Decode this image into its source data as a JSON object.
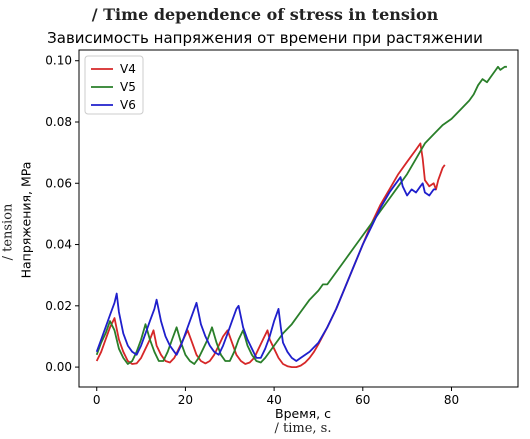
{
  "chart_data": {
    "type": "line",
    "caption": "/ Time dependence of stress in tension",
    "title": "Зависимость напряжения от времени при растяжении",
    "xlabel": "Время, с",
    "xlabel_en": "/ time, s.",
    "ylabel": "Напряжения, MPa",
    "ylabel_en": "/ tension",
    "xlim": [
      -4,
      95
    ],
    "ylim": [
      -0.0065,
      0.1035
    ],
    "xticks": [
      0,
      20,
      40,
      60,
      80
    ],
    "yticks": [
      0.0,
      0.02,
      0.04,
      0.06,
      0.08,
      0.1
    ],
    "xtick_labels": [
      "0",
      "20",
      "40",
      "60",
      "80"
    ],
    "ytick_labels": [
      "0.00",
      "0.02",
      "0.04",
      "0.06",
      "0.08",
      "0.10"
    ],
    "grid": false,
    "legend_position": "top-left",
    "series": [
      {
        "name": "V4",
        "color": "#d62728",
        "points": [
          [
            0,
            0.002
          ],
          [
            1,
            0.005
          ],
          [
            2,
            0.009
          ],
          [
            3,
            0.013
          ],
          [
            4,
            0.016
          ],
          [
            5,
            0.009
          ],
          [
            6,
            0.005
          ],
          [
            7,
            0.002
          ],
          [
            8,
            0.001
          ],
          [
            9,
            0.0012
          ],
          [
            10,
            0.003
          ],
          [
            11,
            0.006
          ],
          [
            12,
            0.009
          ],
          [
            12.8,
            0.012
          ],
          [
            13.5,
            0.007
          ],
          [
            14.5,
            0.004
          ],
          [
            15.5,
            0.002
          ],
          [
            16.5,
            0.0015
          ],
          [
            17.5,
            0.003
          ],
          [
            18.5,
            0.006
          ],
          [
            19.5,
            0.009
          ],
          [
            20.5,
            0.012
          ],
          [
            21.5,
            0.008
          ],
          [
            22.5,
            0.004
          ],
          [
            23.5,
            0.002
          ],
          [
            24.5,
            0.0012
          ],
          [
            25.5,
            0.002
          ],
          [
            26.5,
            0.004
          ],
          [
            27.5,
            0.007
          ],
          [
            28.5,
            0.01
          ],
          [
            29.5,
            0.012
          ],
          [
            30.5,
            0.008
          ],
          [
            31.5,
            0.004
          ],
          [
            32.5,
            0.002
          ],
          [
            33.5,
            0.001
          ],
          [
            34.5,
            0.0015
          ],
          [
            35.5,
            0.003
          ],
          [
            36.5,
            0.006
          ],
          [
            37.5,
            0.009
          ],
          [
            38.5,
            0.012
          ],
          [
            39,
            0.009
          ],
          [
            40,
            0.006
          ],
          [
            41,
            0.003
          ],
          [
            42,
            0.001
          ],
          [
            43,
            0.0003
          ],
          [
            44,
            0.0
          ],
          [
            45,
            0.0
          ],
          [
            46,
            0.0005
          ],
          [
            47,
            0.0015
          ],
          [
            48,
            0.003
          ],
          [
            49,
            0.005
          ],
          [
            50,
            0.0075
          ],
          [
            52,
            0.013
          ],
          [
            54,
            0.019
          ],
          [
            56,
            0.026
          ],
          [
            58,
            0.033
          ],
          [
            60,
            0.04
          ],
          [
            62,
            0.047
          ],
          [
            64,
            0.053
          ],
          [
            66,
            0.058
          ],
          [
            68,
            0.063
          ],
          [
            70,
            0.067
          ],
          [
            72,
            0.071
          ],
          [
            73,
            0.073
          ],
          [
            73.5,
            0.068
          ],
          [
            74,
            0.061
          ],
          [
            75,
            0.059
          ],
          [
            76,
            0.06
          ],
          [
            76.5,
            0.058
          ],
          [
            77,
            0.061
          ],
          [
            78,
            0.065
          ],
          [
            78.5,
            0.066
          ]
        ]
      },
      {
        "name": "V5",
        "color": "#2a7f2a",
        "points": [
          [
            0,
            0.004
          ],
          [
            1,
            0.008
          ],
          [
            2,
            0.011
          ],
          [
            3,
            0.015
          ],
          [
            4,
            0.012
          ],
          [
            5,
            0.006
          ],
          [
            6,
            0.003
          ],
          [
            7,
            0.001
          ],
          [
            8,
            0.002
          ],
          [
            9,
            0.005
          ],
          [
            10,
            0.009
          ],
          [
            11,
            0.014
          ],
          [
            12,
            0.009
          ],
          [
            13,
            0.005
          ],
          [
            14,
            0.002
          ],
          [
            15,
            0.002
          ],
          [
            16,
            0.005
          ],
          [
            17,
            0.009
          ],
          [
            18,
            0.013
          ],
          [
            19,
            0.008
          ],
          [
            20,
            0.004
          ],
          [
            21,
            0.002
          ],
          [
            22,
            0.001
          ],
          [
            23,
            0.003
          ],
          [
            24,
            0.006
          ],
          [
            25,
            0.009
          ],
          [
            26,
            0.013
          ],
          [
            27,
            0.008
          ],
          [
            28,
            0.004
          ],
          [
            29,
            0.002
          ],
          [
            30,
            0.002
          ],
          [
            31,
            0.005
          ],
          [
            32,
            0.009
          ],
          [
            33,
            0.012
          ],
          [
            34,
            0.007
          ],
          [
            35,
            0.004
          ],
          [
            36,
            0.002
          ],
          [
            37,
            0.0015
          ],
          [
            38,
            0.003
          ],
          [
            40,
            0.007
          ],
          [
            42,
            0.011
          ],
          [
            44,
            0.014
          ],
          [
            46,
            0.018
          ],
          [
            48,
            0.022
          ],
          [
            50,
            0.025
          ],
          [
            51,
            0.027
          ],
          [
            52,
            0.027
          ],
          [
            54,
            0.031
          ],
          [
            56,
            0.035
          ],
          [
            58,
            0.039
          ],
          [
            60,
            0.043
          ],
          [
            62,
            0.047
          ],
          [
            64,
            0.051
          ],
          [
            66,
            0.055
          ],
          [
            68,
            0.059
          ],
          [
            70,
            0.063
          ],
          [
            72,
            0.068
          ],
          [
            74,
            0.073
          ],
          [
            76,
            0.076
          ],
          [
            78,
            0.079
          ],
          [
            80,
            0.081
          ],
          [
            82,
            0.084
          ],
          [
            84,
            0.087
          ],
          [
            85,
            0.089
          ],
          [
            86,
            0.092
          ],
          [
            87,
            0.094
          ],
          [
            88,
            0.093
          ],
          [
            89,
            0.095
          ],
          [
            90,
            0.097
          ],
          [
            90.5,
            0.098
          ],
          [
            91,
            0.097
          ],
          [
            92,
            0.098
          ],
          [
            92.5,
            0.098
          ]
        ]
      },
      {
        "name": "V6",
        "color": "#1f1fcc",
        "points": [
          [
            0,
            0.005
          ],
          [
            1,
            0.009
          ],
          [
            2,
            0.013
          ],
          [
            3,
            0.017
          ],
          [
            4,
            0.021
          ],
          [
            4.5,
            0.024
          ],
          [
            5,
            0.018
          ],
          [
            6,
            0.011
          ],
          [
            7,
            0.007
          ],
          [
            8,
            0.005
          ],
          [
            9,
            0.004
          ],
          [
            10,
            0.007
          ],
          [
            11,
            0.011
          ],
          [
            12,
            0.015
          ],
          [
            13,
            0.019
          ],
          [
            13.5,
            0.022
          ],
          [
            14.5,
            0.015
          ],
          [
            15.5,
            0.01
          ],
          [
            16.5,
            0.007
          ],
          [
            17.5,
            0.005
          ],
          [
            18,
            0.004
          ],
          [
            19,
            0.007
          ],
          [
            20,
            0.011
          ],
          [
            21,
            0.015
          ],
          [
            22,
            0.019
          ],
          [
            22.5,
            0.021
          ],
          [
            23.5,
            0.014
          ],
          [
            24.5,
            0.01
          ],
          [
            25.5,
            0.007
          ],
          [
            26.5,
            0.005
          ],
          [
            27.5,
            0.004
          ],
          [
            28.5,
            0.007
          ],
          [
            29.5,
            0.011
          ],
          [
            30.5,
            0.015
          ],
          [
            31.5,
            0.019
          ],
          [
            32,
            0.02
          ],
          [
            33,
            0.013
          ],
          [
            34,
            0.009
          ],
          [
            35,
            0.006
          ],
          [
            36,
            0.003
          ],
          [
            37,
            0.003
          ],
          [
            38,
            0.006
          ],
          [
            39,
            0.01
          ],
          [
            40,
            0.015
          ],
          [
            41,
            0.019
          ],
          [
            41.5,
            0.013
          ],
          [
            42,
            0.008
          ],
          [
            43,
            0.005
          ],
          [
            44,
            0.003
          ],
          [
            45,
            0.002
          ],
          [
            46,
            0.003
          ],
          [
            48,
            0.005
          ],
          [
            50,
            0.008
          ],
          [
            52,
            0.013
          ],
          [
            54,
            0.019
          ],
          [
            56,
            0.026
          ],
          [
            58,
            0.033
          ],
          [
            60,
            0.04
          ],
          [
            62,
            0.046
          ],
          [
            64,
            0.052
          ],
          [
            66,
            0.057
          ],
          [
            67,
            0.059
          ],
          [
            68,
            0.061
          ],
          [
            68.5,
            0.062
          ],
          [
            69,
            0.059
          ],
          [
            70,
            0.056
          ],
          [
            71,
            0.058
          ],
          [
            72,
            0.057
          ],
          [
            73,
            0.059
          ],
          [
            73.5,
            0.06
          ],
          [
            74,
            0.057
          ],
          [
            75,
            0.056
          ],
          [
            76,
            0.058
          ],
          [
            76.5,
            0.058
          ]
        ]
      }
    ]
  }
}
